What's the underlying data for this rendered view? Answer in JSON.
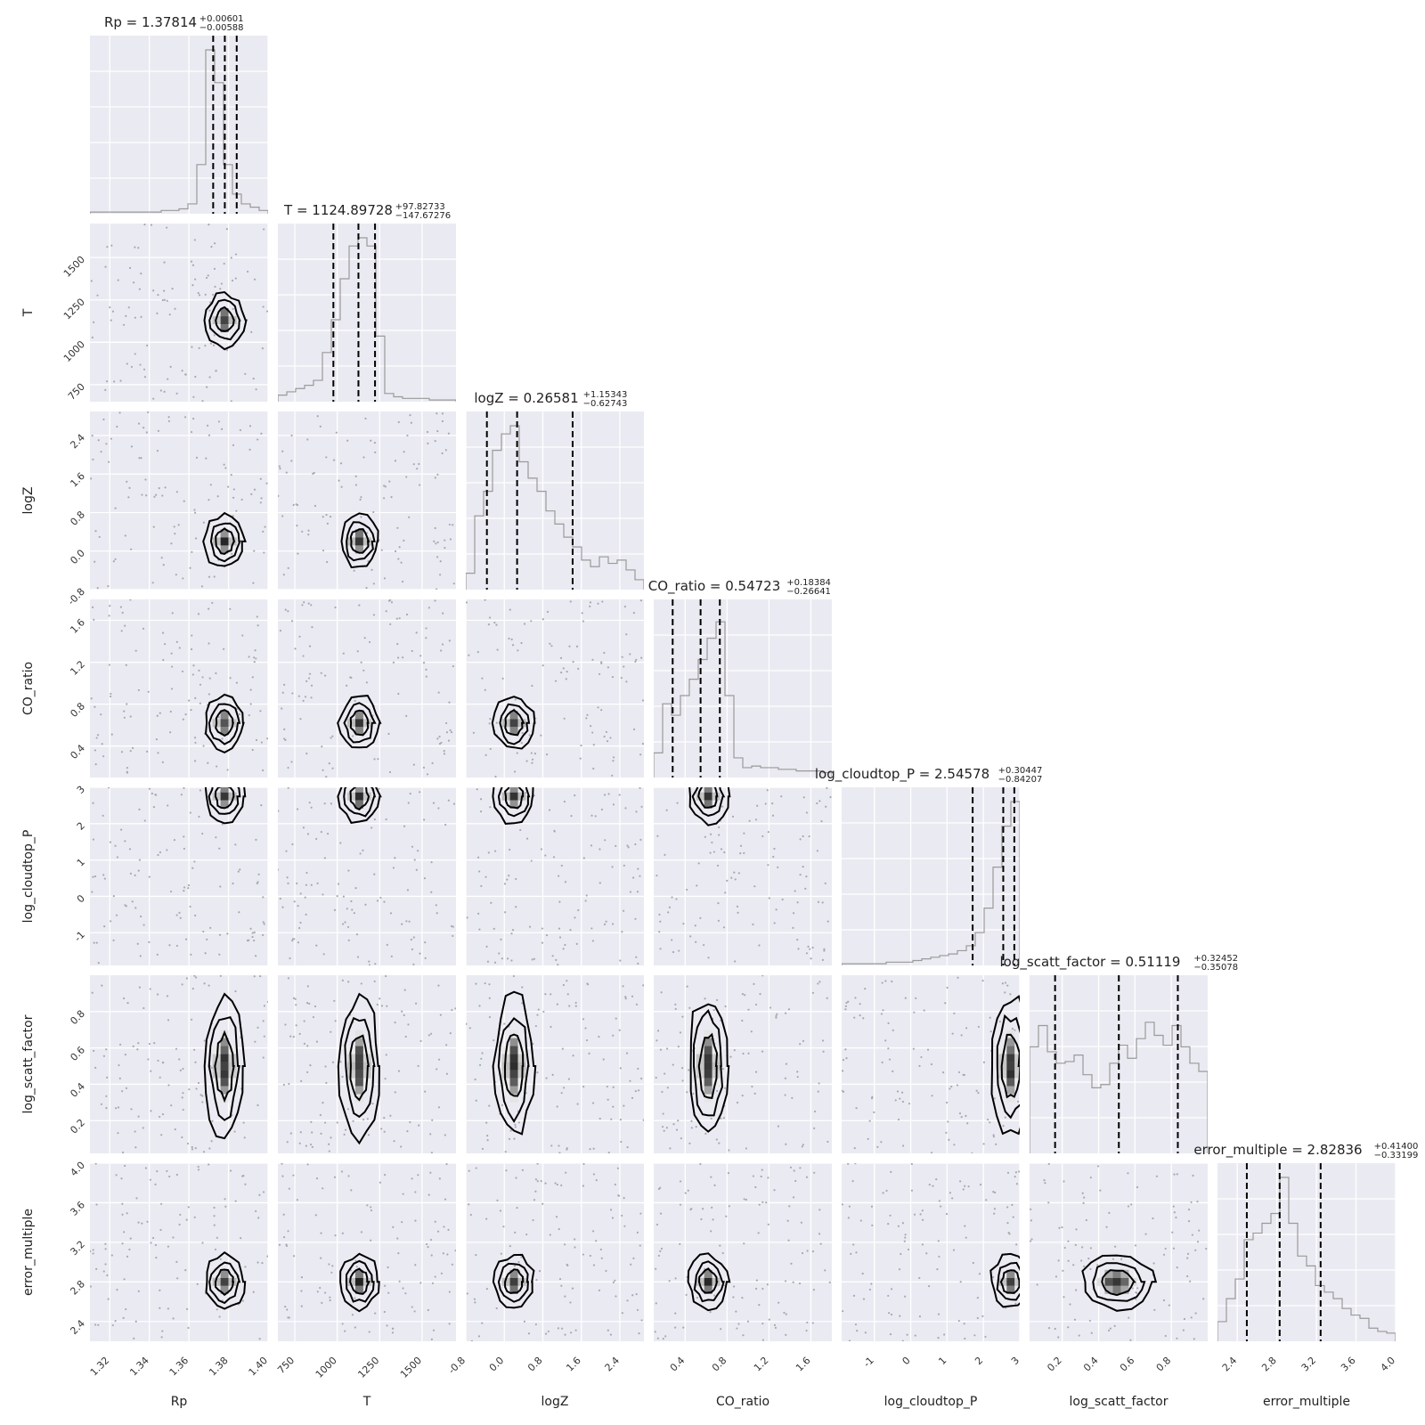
{
  "chart_data": {
    "type": "corner",
    "params": [
      "Rp",
      "T",
      "logZ",
      "CO_ratio",
      "log_cloudtop_P",
      "log_scatt_factor",
      "error_multiple"
    ],
    "axis_labels": [
      "Rp",
      "T",
      "logZ",
      "CO_ratio",
      "log_cloudtop_P",
      "log_scatt_factor",
      "error_multiple"
    ],
    "ranges": [
      [
        1.31,
        1.4
      ],
      [
        650,
        1700
      ],
      [
        -0.8,
        2.9
      ],
      [
        0.1,
        1.8
      ],
      [
        -1.9,
        3.0
      ],
      [
        0.02,
        1.0
      ],
      [
        2.2,
        4.0
      ]
    ],
    "ticks": [
      [
        "1.32",
        "1.34",
        "1.36",
        "1.38",
        "1.40"
      ],
      [
        "750",
        "1000",
        "1250",
        "1500"
      ],
      [
        "-0.8",
        "0.0",
        "0.8",
        "1.6",
        "2.4"
      ],
      [
        "0.4",
        "0.8",
        "1.2",
        "1.6"
      ],
      [
        "-1",
        "0",
        "1",
        "2",
        "3"
      ],
      [
        "0.2",
        "0.4",
        "0.6",
        "0.8"
      ],
      [
        "2.4",
        "2.8",
        "3.2",
        "3.6",
        "4.0"
      ]
    ],
    "titles": [
      {
        "name": "Rp",
        "value": "1.37814",
        "plus": "+0.00601",
        "minus": "−0.00588"
      },
      {
        "name": "T",
        "value": "1124.89728",
        "plus": "+97.82733",
        "minus": "−147.67276"
      },
      {
        "name": "logZ",
        "value": "0.26581",
        "plus": "+1.15343",
        "minus": "−0.62743"
      },
      {
        "name": "CO_ratio",
        "value": "0.54723",
        "plus": "+0.18384",
        "minus": "−0.26641"
      },
      {
        "name": "log_cloudtop_P",
        "value": "2.54578",
        "plus": "+0.30447",
        "minus": "−0.84207"
      },
      {
        "name": "log_scatt_factor",
        "value": "0.51119",
        "plus": "+0.32452",
        "minus": "−0.35078"
      },
      {
        "name": "error_multiple",
        "value": "2.82836",
        "plus": "+0.41400",
        "minus": "−0.33199"
      }
    ],
    "quantiles": [
      [
        1.37226,
        1.37814,
        1.38415
      ],
      [
        977.22,
        1124.9,
        1222.72
      ],
      [
        -0.36162,
        0.26581,
        1.41924
      ],
      [
        0.28082,
        0.54723,
        0.73107
      ],
      [
        1.70371,
        2.54578,
        2.85025
      ],
      [
        0.16041,
        0.51119,
        0.83571
      ],
      [
        2.49637,
        2.82836,
        3.24236
      ]
    ],
    "hist": [
      [
        0.01,
        0.01,
        0.01,
        0.01,
        0.01,
        0.01,
        0.01,
        0.01,
        0.02,
        0.02,
        0.03,
        0.06,
        0.3,
        1.0,
        0.8,
        0.3,
        0.12,
        0.06,
        0.04,
        0.02
      ],
      [
        0.04,
        0.06,
        0.08,
        0.1,
        0.13,
        0.3,
        0.5,
        0.75,
        0.95,
        1.0,
        0.95,
        0.4,
        0.05,
        0.03,
        0.02,
        0.02,
        0.02,
        0.01,
        0.01,
        0.01
      ],
      [
        0.1,
        0.45,
        0.6,
        0.85,
        0.95,
        1.0,
        0.78,
        0.68,
        0.6,
        0.48,
        0.4,
        0.32,
        0.26,
        0.18,
        0.14,
        0.2,
        0.16,
        0.18,
        0.12,
        0.06
      ],
      [
        0.15,
        0.45,
        0.38,
        0.5,
        0.6,
        0.72,
        0.85,
        0.95,
        0.5,
        0.12,
        0.06,
        0.07,
        0.06,
        0.06,
        0.05,
        0.05,
        0.04,
        0.04,
        0.04,
        0.03
      ],
      [
        0.01,
        0.01,
        0.01,
        0.01,
        0.01,
        0.02,
        0.02,
        0.02,
        0.03,
        0.04,
        0.05,
        0.06,
        0.07,
        0.09,
        0.12,
        0.2,
        0.35,
        0.6,
        0.85,
        1.0
      ],
      [
        0.65,
        0.78,
        0.62,
        0.55,
        0.56,
        0.6,
        0.48,
        0.4,
        0.42,
        0.55,
        0.66,
        0.58,
        0.7,
        0.8,
        0.72,
        0.66,
        0.78,
        0.65,
        0.55,
        0.5
      ],
      [
        0.12,
        0.26,
        0.38,
        0.62,
        0.66,
        0.72,
        0.78,
        1.0,
        0.72,
        0.52,
        0.46,
        0.34,
        0.3,
        0.26,
        0.2,
        0.16,
        0.14,
        0.08,
        0.06,
        0.05
      ]
    ],
    "posterior_peaks": {
      "Rp": 1.378,
      "T": 1130,
      "logZ": 0.2,
      "CO_ratio": 0.62,
      "log_cloudtop_P": 2.75,
      "log_scatt_factor": 0.5,
      "error_multiple": 2.8
    },
    "grid": true,
    "scatter": true,
    "contours": true
  }
}
